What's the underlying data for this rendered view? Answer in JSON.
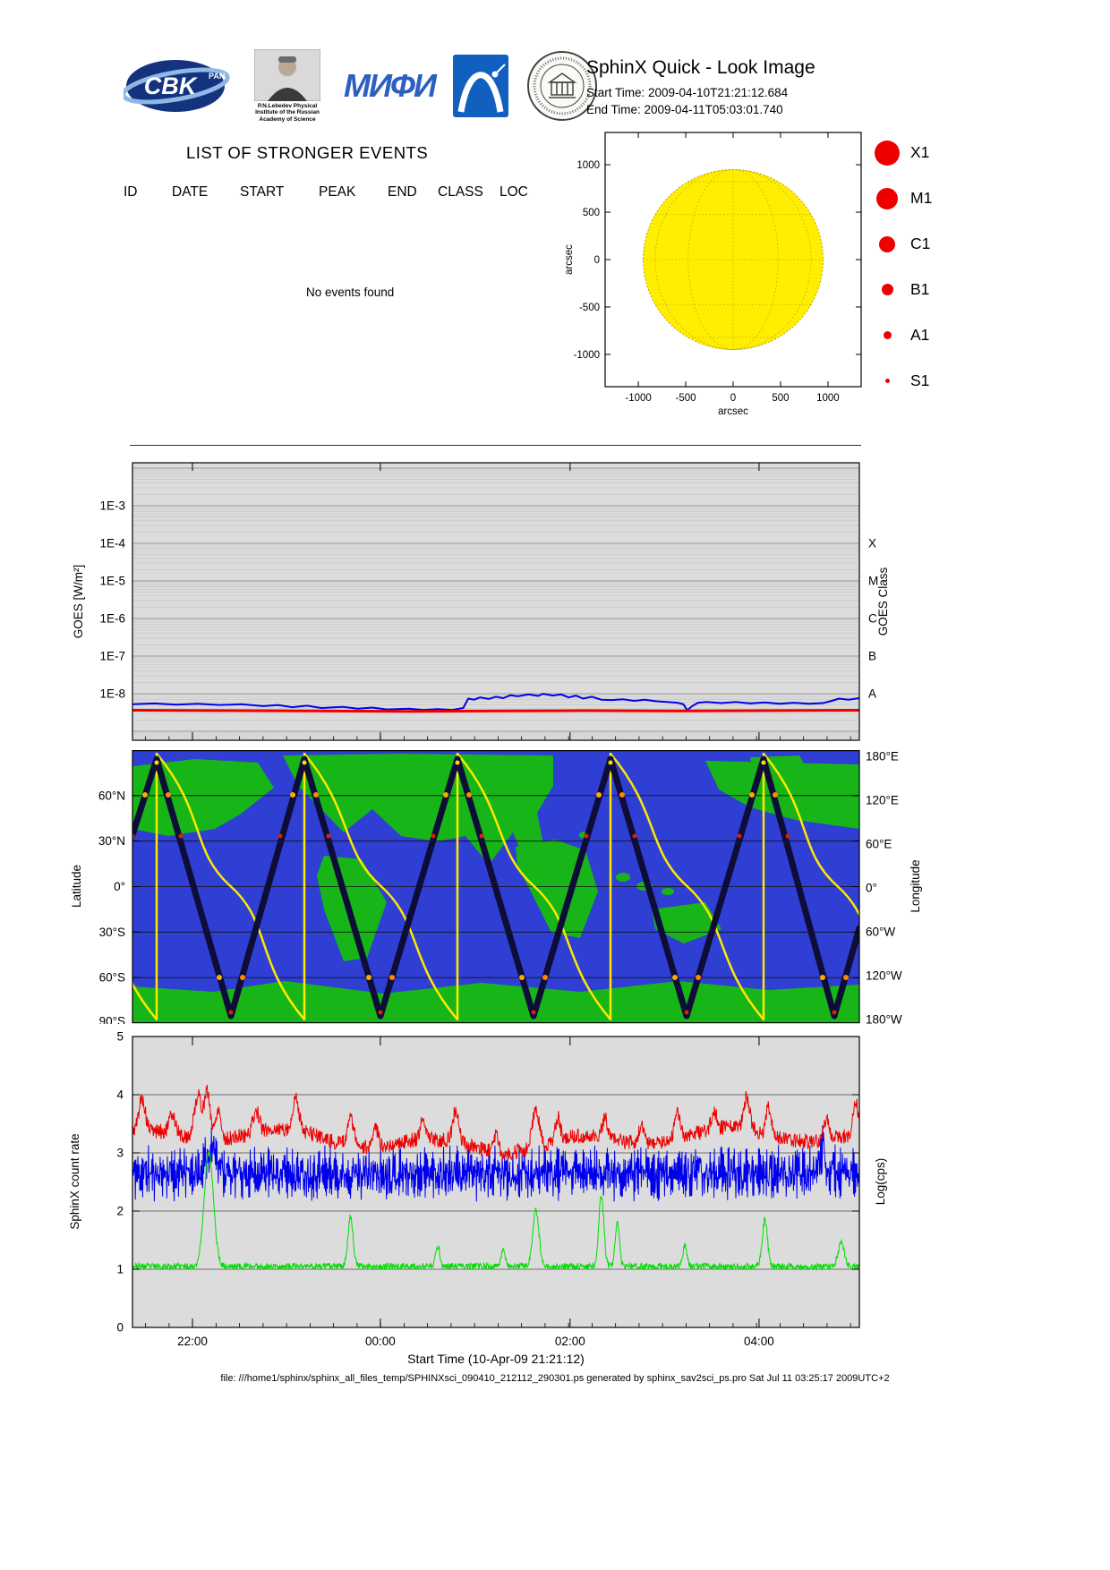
{
  "header": {
    "title": "SphinX Quick - Look Image",
    "start_time": "Start Time: 2009-04-10T21:21:12.684",
    "end_time": "End Time: 2009-04-11T05:03:01.740",
    "logos": {
      "cbk_text": "CBK",
      "cbk_sub": "PAN",
      "lebedev_caption_1": "P.N.Lebedev Physical",
      "lebedev_caption_2": "Institute of the Russian",
      "lebedev_caption_3": "Academy of Science",
      "mephi_text": "МИФИ"
    }
  },
  "events": {
    "heading": "LIST OF STRONGER EVENTS",
    "columns": [
      "ID",
      "DATE",
      "START",
      "PEAK",
      "END",
      "CLASS",
      "LOC"
    ],
    "empty_message": "No events found"
  },
  "sun_plot": {
    "x_label": "arcsec",
    "y_label": "arcsec",
    "x_ticks": [
      -1000,
      -500,
      0,
      500,
      1000
    ],
    "y_ticks": [
      1000,
      500,
      0,
      -500,
      -1000
    ],
    "sun_color": "#ffee00",
    "grid_color": "#b9a800",
    "legend_color": "#ee0000",
    "legend": [
      {
        "label": "X1",
        "diameter": 28
      },
      {
        "label": "M1",
        "diameter": 24
      },
      {
        "label": "C1",
        "diameter": 18
      },
      {
        "label": "B1",
        "diameter": 13
      },
      {
        "label": "A1",
        "diameter": 9
      },
      {
        "label": "S1",
        "diameter": 5
      }
    ]
  },
  "chart_data": [
    {
      "type": "line",
      "name": "goes-xray-flux",
      "ylabel": "GOES [W/m²]",
      "ylabel_right": "GOES Class",
      "y_tick_labels": [
        "1E-3",
        "1E-4",
        "1E-5",
        "1E-6",
        "1E-7",
        "1E-8"
      ],
      "y_tick_values": [
        -3,
        -4,
        -5,
        -6,
        -7,
        -8
      ],
      "class_labels": [
        "X",
        "M",
        "C",
        "B",
        "A"
      ],
      "class_values": [
        -4,
        -5,
        -6,
        -7,
        -8
      ],
      "background": "#dcdcdc",
      "x_tick_pos": [
        0.0825,
        0.341,
        0.602,
        0.862
      ],
      "series": [
        {
          "name": "GOES long channel",
          "color": "#0000ee",
          "width": 2,
          "points": [
            [
              0,
              -8.28
            ],
            [
              0.03,
              -8.26
            ],
            [
              0.06,
              -8.29
            ],
            [
              0.09,
              -8.27
            ],
            [
              0.12,
              -8.3
            ],
            [
              0.15,
              -8.28
            ],
            [
              0.18,
              -8.33
            ],
            [
              0.2,
              -8.3
            ],
            [
              0.22,
              -8.36
            ],
            [
              0.24,
              -8.32
            ],
            [
              0.26,
              -8.38
            ],
            [
              0.29,
              -8.35
            ],
            [
              0.31,
              -8.4
            ],
            [
              0.33,
              -8.37
            ],
            [
              0.35,
              -8.42
            ],
            [
              0.38,
              -8.4
            ],
            [
              0.4,
              -8.43
            ],
            [
              0.42,
              -8.41
            ],
            [
              0.44,
              -8.43
            ],
            [
              0.455,
              -8.38
            ],
            [
              0.462,
              -8.13
            ],
            [
              0.47,
              -8.16
            ],
            [
              0.478,
              -8.1
            ],
            [
              0.49,
              -8.14
            ],
            [
              0.5,
              -8.08
            ],
            [
              0.51,
              -8.12
            ],
            [
              0.52,
              -8.04
            ],
            [
              0.53,
              -8.07
            ],
            [
              0.545,
              -8.02
            ],
            [
              0.558,
              -8.06
            ],
            [
              0.565,
              -8.0
            ],
            [
              0.578,
              -8.05
            ],
            [
              0.59,
              -8.02
            ],
            [
              0.6,
              -8.1
            ],
            [
              0.61,
              -8.05
            ],
            [
              0.62,
              -8.13
            ],
            [
              0.632,
              -8.08
            ],
            [
              0.645,
              -8.16
            ],
            [
              0.66,
              -8.17
            ],
            [
              0.675,
              -8.15
            ],
            [
              0.69,
              -8.19
            ],
            [
              0.705,
              -8.16
            ],
            [
              0.72,
              -8.2
            ],
            [
              0.735,
              -8.22
            ],
            [
              0.75,
              -8.24
            ],
            [
              0.758,
              -8.28
            ],
            [
              0.763,
              -8.44
            ],
            [
              0.77,
              -8.33
            ],
            [
              0.778,
              -8.24
            ],
            [
              0.79,
              -8.22
            ],
            [
              0.81,
              -8.25
            ],
            [
              0.83,
              -8.22
            ],
            [
              0.85,
              -8.26
            ],
            [
              0.87,
              -8.23
            ],
            [
              0.89,
              -8.27
            ],
            [
              0.91,
              -8.24
            ],
            [
              0.93,
              -8.27
            ],
            [
              0.95,
              -8.25
            ],
            [
              0.962,
              -8.19
            ],
            [
              0.972,
              -8.13
            ],
            [
              0.985,
              -8.16
            ],
            [
              1,
              -8.12
            ]
          ]
        },
        {
          "name": "GOES short channel",
          "color": "#ee0000",
          "width": 3,
          "points": [
            [
              0,
              -8.44
            ],
            [
              0.12,
              -8.45
            ],
            [
              0.25,
              -8.46
            ],
            [
              0.38,
              -8.47
            ],
            [
              0.5,
              -8.46
            ],
            [
              0.62,
              -8.45
            ],
            [
              0.75,
              -8.46
            ],
            [
              0.88,
              -8.45
            ],
            [
              1,
              -8.44
            ]
          ]
        }
      ]
    },
    {
      "type": "ground-track",
      "name": "orbit-map",
      "ylabel": "Latitude",
      "ylabel_right": "Longitude",
      "lat_ticks": [
        "60°N",
        "30°N",
        "0°",
        "30°S",
        "60°S",
        "90°S"
      ],
      "lon_ticks": [
        "180°E",
        "120°E",
        "60°E",
        "0°",
        "60°W",
        "120°W",
        "180°W"
      ],
      "colors": {
        "ocean": "#2f3fd3",
        "land": "#17b517",
        "orbit": "#0d0d38",
        "lon_trace": "#ffe800",
        "grid": "#111111"
      },
      "orbit_points": [
        [
          0,
          95
        ],
        [
          27,
          10
        ],
        [
          110,
          297
        ],
        [
          192,
          10
        ],
        [
          277,
          297
        ],
        [
          363,
          10
        ],
        [
          448,
          297
        ],
        [
          534,
          10
        ],
        [
          619,
          297
        ],
        [
          705,
          10
        ],
        [
          784,
          297
        ],
        [
          812,
          199
        ]
      ],
      "wraps": [
        27,
        192,
        363,
        534,
        705
      ],
      "peaks": [
        27,
        192,
        363,
        534,
        705
      ],
      "troughs": [
        110,
        277,
        448,
        619,
        784
      ],
      "continents": [
        "0,18 70,10 140,14 158,42 120,72 92,88 40,96 0,88",
        "168,6 300,4 470,6 470,40 452,70 460,110 440,128 425,92 398,128 372,96 340,102 300,96 268,66 236,92 205,60 185,40",
        "428,108 472,100 506,112 520,158 500,210 468,204 444,156 430,130",
        "214,118 256,122 284,170 262,232 236,236 214,178 206,140",
        "580,178 640,170 658,200 616,216 584,200",
        "640,12 812,16 812,88 740,78 690,64 655,44",
        "690,8 745,6 760,34 718,50 695,30",
        "0,264 90,270 170,258 280,272 390,260 500,270 610,258 710,268 812,262 812,305 0,305"
      ],
      "islands": [
        [
          548,
          142,
          8,
          5
        ],
        [
          572,
          152,
          9,
          5
        ],
        [
          598,
          158,
          7,
          4
        ],
        [
          505,
          95,
          6,
          4
        ]
      ]
    },
    {
      "type": "line",
      "name": "sphinx-count-rate",
      "ylabel": "SphinX count rate",
      "ylabel_right": "Log(cps)",
      "xlabel": "Start Time (10-Apr-09 21:21:12)",
      "ylim": [
        0,
        5
      ],
      "y_ticks": [
        0,
        1,
        2,
        3,
        4,
        5
      ],
      "x_tick_labels": [
        "22:00",
        "00:00",
        "02:00",
        "04:00"
      ],
      "x_tick_pos": [
        0.0825,
        0.341,
        0.602,
        0.862
      ],
      "background": "#dcdcdc",
      "series": [
        {
          "name": "channel-blue",
          "color": "#0000ee",
          "seed": 11,
          "base": 2.65,
          "noise": 0.28,
          "comb": 0.22,
          "spikes": [
            [
              0.11,
              0.45,
              0.01
            ],
            [
              0.95,
              0.5,
              0.004
            ]
          ]
        },
        {
          "name": "channel-red",
          "color": "#ee0000",
          "seed": 5,
          "base": 3.22,
          "noise": 0.13,
          "wander": 0.11,
          "spikes": [
            [
              0.013,
              0.55,
              0.006
            ],
            [
              0.055,
              0.35,
              0.006
            ],
            [
              0.09,
              0.75,
              0.007
            ],
            [
              0.103,
              0.8,
              0.006
            ],
            [
              0.118,
              0.55,
              0.005
            ],
            [
              0.17,
              0.38,
              0.006
            ],
            [
              0.225,
              0.55,
              0.006
            ],
            [
              0.3,
              0.5,
              0.006
            ],
            [
              0.335,
              0.3,
              0.005
            ],
            [
              0.4,
              0.35,
              0.005
            ],
            [
              0.445,
              0.55,
              0.006
            ],
            [
              0.5,
              0.3,
              0.005
            ],
            [
              0.555,
              0.65,
              0.007
            ],
            [
              0.585,
              0.4,
              0.005
            ],
            [
              0.65,
              0.35,
              0.005
            ],
            [
              0.7,
              0.3,
              0.005
            ],
            [
              0.75,
              0.45,
              0.006
            ],
            [
              0.8,
              0.3,
              0.005
            ],
            [
              0.845,
              0.55,
              0.006
            ],
            [
              0.875,
              0.45,
              0.005
            ],
            [
              0.955,
              0.35,
              0.005
            ],
            [
              0.995,
              0.55,
              0.005
            ]
          ]
        },
        {
          "name": "channel-green",
          "color": "#00dd00",
          "seed": 23,
          "base": 1.05,
          "noise": 0.055,
          "spikes": [
            [
              0.105,
              1.95,
              0.009
            ],
            [
              0.3,
              0.85,
              0.005
            ],
            [
              0.42,
              0.35,
              0.004
            ],
            [
              0.51,
              0.3,
              0.004
            ],
            [
              0.555,
              0.95,
              0.006
            ],
            [
              0.645,
              1.2,
              0.005
            ],
            [
              0.667,
              0.75,
              0.004
            ],
            [
              0.76,
              0.35,
              0.004
            ],
            [
              0.87,
              0.8,
              0.005
            ],
            [
              0.975,
              0.4,
              0.006
            ]
          ]
        }
      ]
    }
  ],
  "footer": "file: ///home1/sphinx/sphinx_all_files_temp/SPHINXsci_090410_212112_290301.ps generated by sphinx_sav2sci_ps.pro Sat Jul 11 03:25:17 2009UTC+2"
}
